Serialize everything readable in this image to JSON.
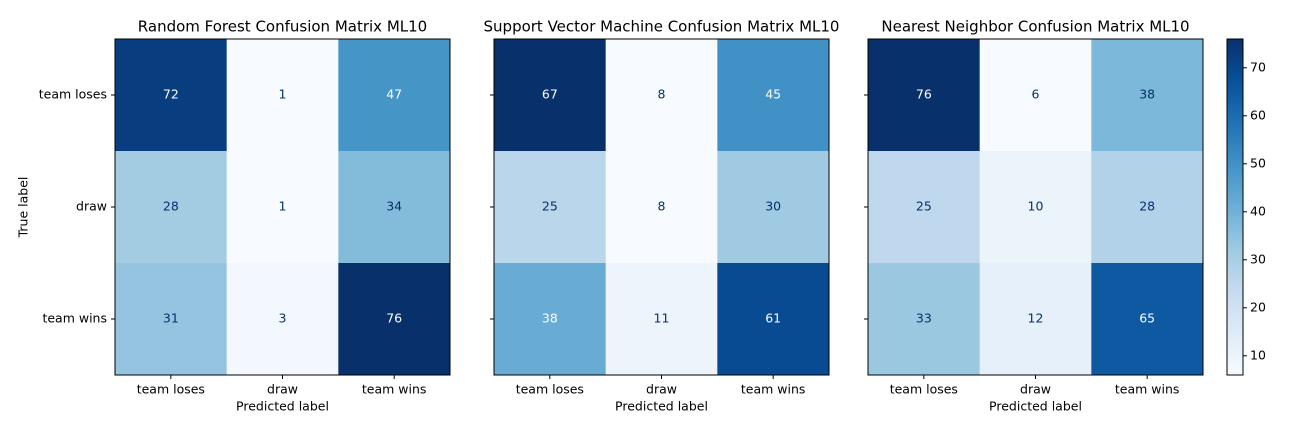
{
  "chart_data": [
    {
      "type": "heatmap",
      "title": "Random Forest Confusion Matrix ML10",
      "colormap": "Blues",
      "x_label": "Predicted label",
      "y_label": "True label",
      "x_categories": [
        "team loses",
        "draw",
        "team wins"
      ],
      "y_categories": [
        "team loses",
        "draw",
        "team wins"
      ],
      "values": [
        [
          72,
          1,
          47
        ],
        [
          28,
          1,
          34
        ],
        [
          31,
          3,
          76
        ]
      ]
    },
    {
      "type": "heatmap",
      "title": "Support Vector Machine Confusion Matrix ML10",
      "colormap": "Blues",
      "x_label": "Predicted label",
      "x_categories": [
        "team loses",
        "draw",
        "team wins"
      ],
      "values": [
        [
          67,
          8,
          45
        ],
        [
          25,
          8,
          30
        ],
        [
          38,
          11,
          61
        ]
      ]
    },
    {
      "type": "heatmap",
      "title": "Nearest Neighbor Confusion Matrix ML10",
      "colormap": "Blues",
      "x_label": "Predicted label",
      "x_categories": [
        "team loses",
        "draw",
        "team wins"
      ],
      "values": [
        [
          76,
          6,
          38
        ],
        [
          25,
          10,
          28
        ],
        [
          33,
          12,
          65
        ]
      ],
      "colorbar": true,
      "zticks": [
        10,
        20,
        30,
        40,
        50,
        60,
        70
      ]
    }
  ]
}
